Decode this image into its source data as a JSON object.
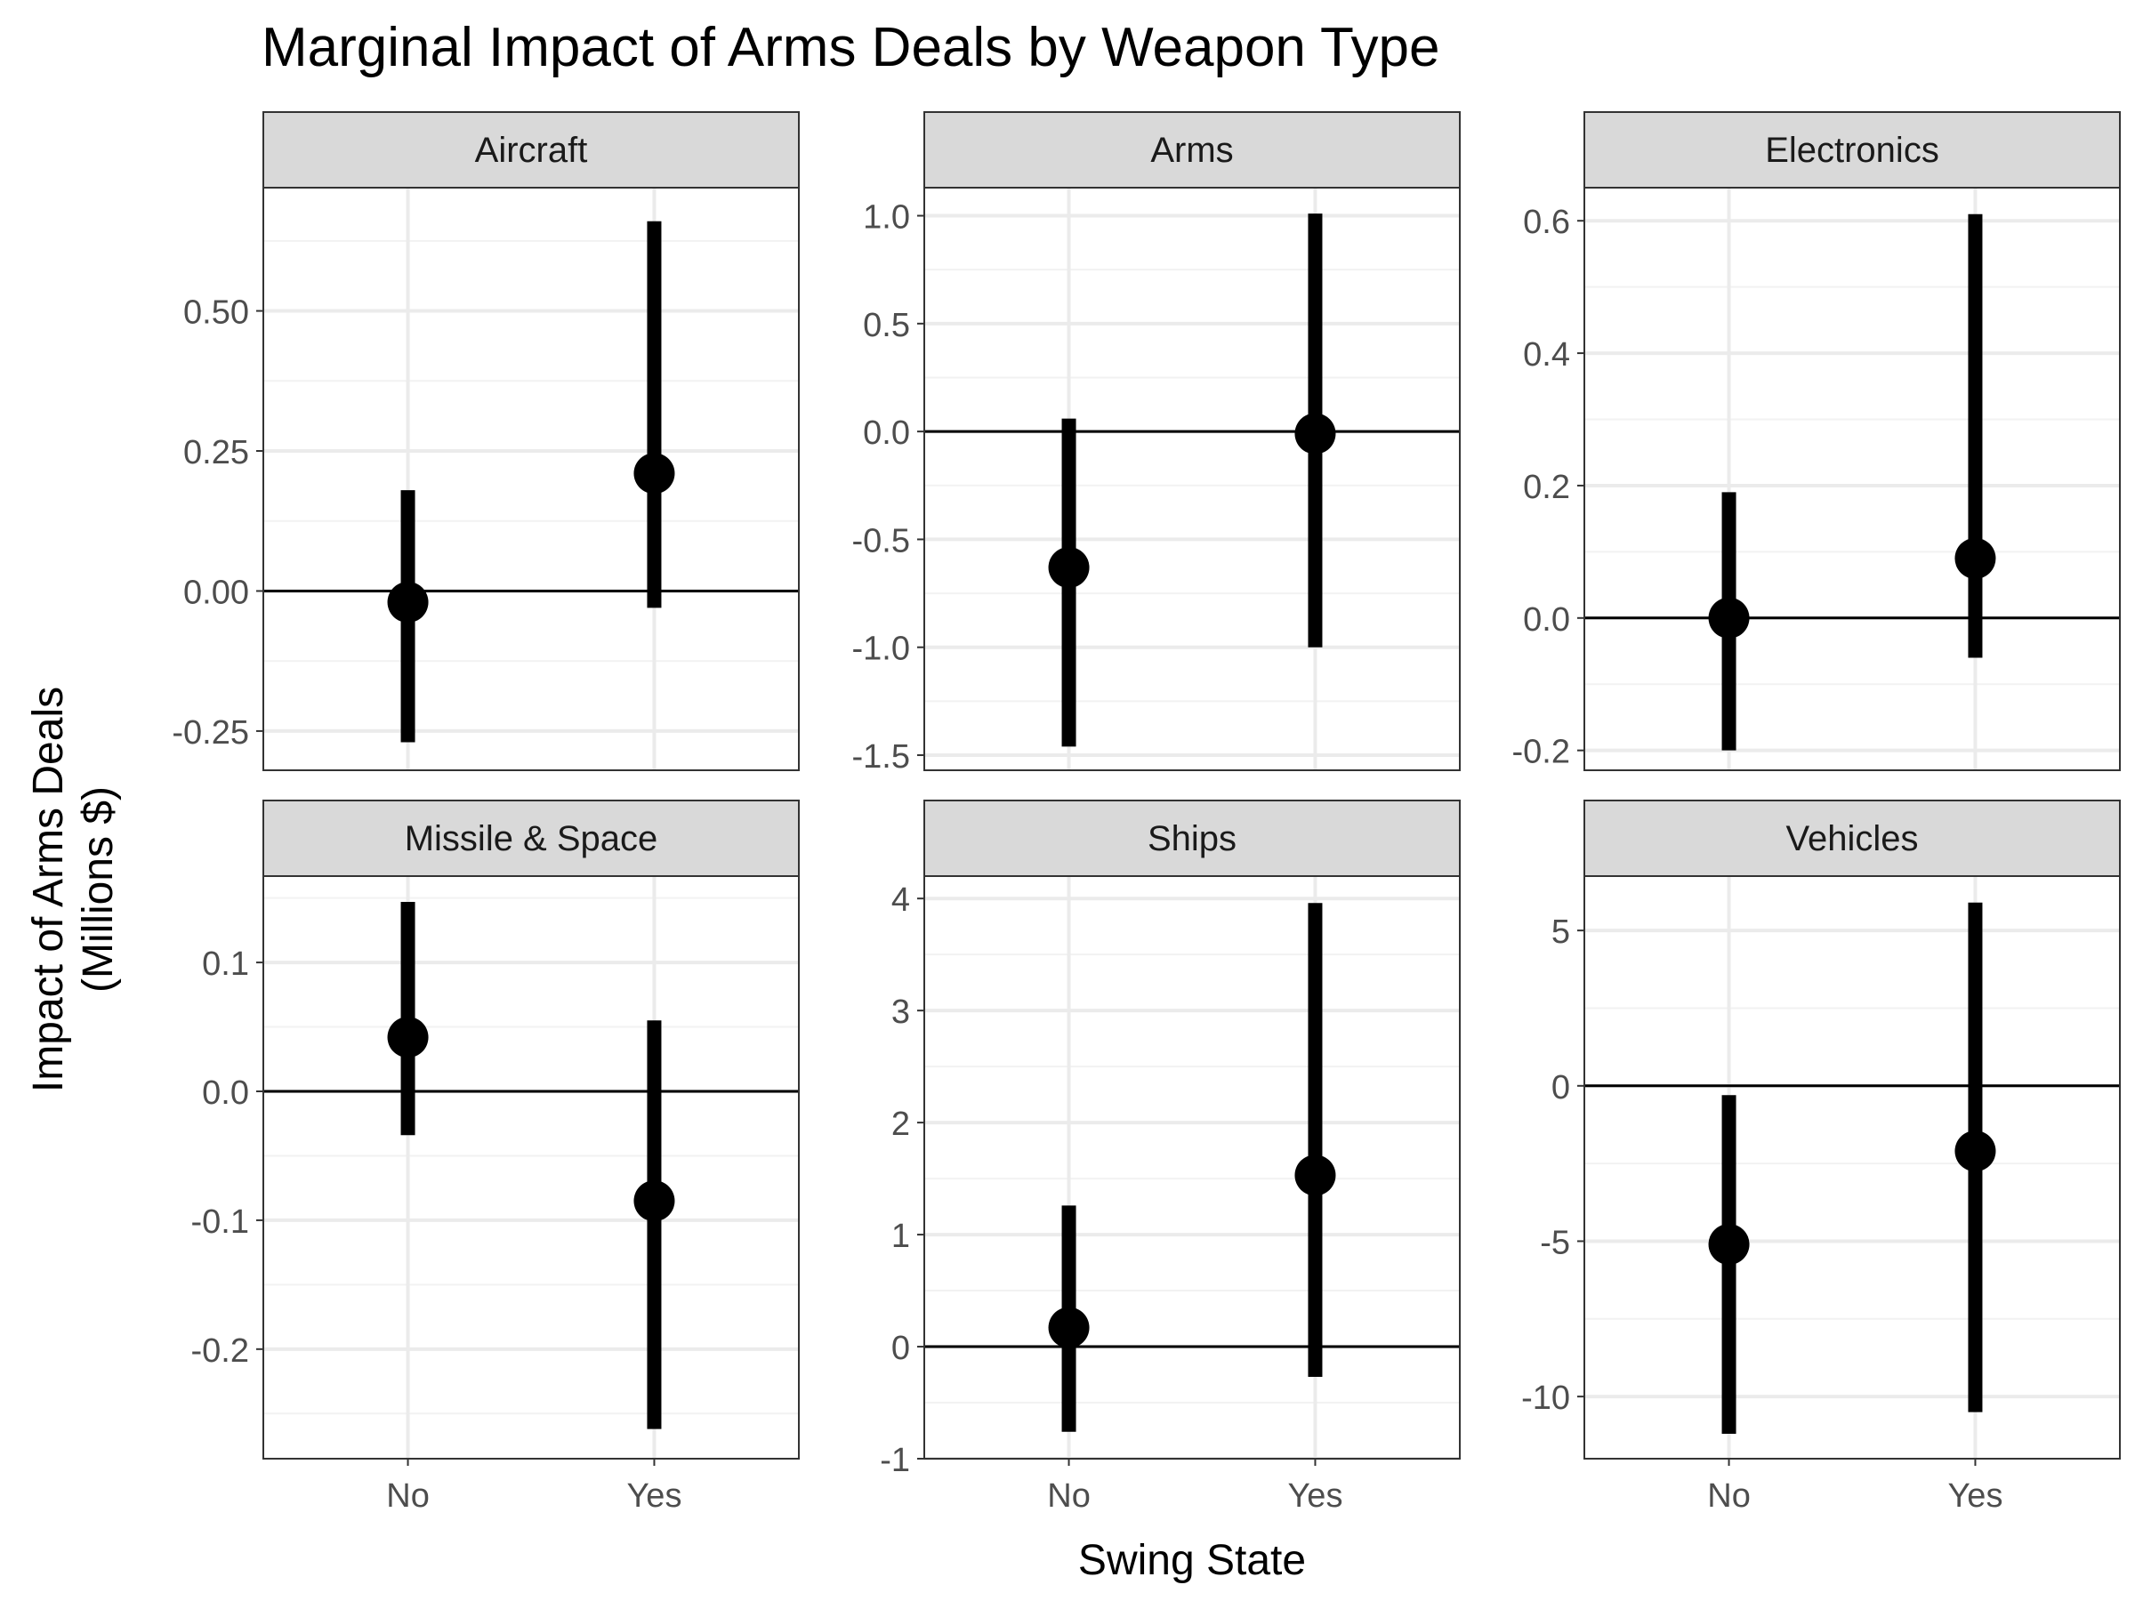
{
  "title": "Marginal Impact of Arms Deals by Weapon Type",
  "xlabel": "Swing State",
  "ylabel_lines": [
    "Impact of Arms Deals",
    "(Millions $)"
  ],
  "colors": {
    "mark": "#000000",
    "strip": "#d9d9d9",
    "panel_border": "#333333",
    "grid_major": "#ebebeb",
    "grid_minor": "#f2f2f2",
    "tick_text": "#4d4d4d",
    "text": "#000000"
  },
  "chart_data": [
    {
      "type": "pointrange",
      "facet": "Aircraft",
      "categories": [
        "No",
        "Yes"
      ],
      "estimates": [
        -0.02,
        0.21
      ],
      "lower": [
        -0.27,
        -0.03
      ],
      "upper": [
        0.18,
        0.66
      ],
      "ylim": [
        -0.32,
        0.72
      ],
      "yticks": [
        -0.25,
        0.0,
        0.25,
        0.5
      ],
      "ytick_labels": [
        "-0.25",
        "0.00",
        "0.25",
        "0.50"
      ],
      "reference_line": 0
    },
    {
      "type": "pointrange",
      "facet": "Arms",
      "categories": [
        "No",
        "Yes"
      ],
      "estimates": [
        -0.63,
        -0.01
      ],
      "lower": [
        -1.46,
        -1.0
      ],
      "upper": [
        0.06,
        1.01
      ],
      "ylim": [
        -1.57,
        1.13
      ],
      "yticks": [
        -1.5,
        -1.0,
        -0.5,
        0.0,
        0.5,
        1.0
      ],
      "ytick_labels": [
        "-1.5",
        "-1.0",
        "-0.5",
        "0.0",
        "0.5",
        "1.0"
      ],
      "reference_line": 0
    },
    {
      "type": "pointrange",
      "facet": "Electronics",
      "categories": [
        "No",
        "Yes"
      ],
      "estimates": [
        0.0,
        0.09
      ],
      "lower": [
        -0.2,
        -0.06
      ],
      "upper": [
        0.19,
        0.61
      ],
      "ylim": [
        -0.23,
        0.65
      ],
      "yticks": [
        -0.2,
        0.0,
        0.2,
        0.4,
        0.6
      ],
      "ytick_labels": [
        "-0.2",
        "0.0",
        "0.2",
        "0.4",
        "0.6"
      ],
      "reference_line": 0
    },
    {
      "type": "pointrange",
      "facet": "Missile & Space",
      "categories": [
        "No",
        "Yes"
      ],
      "estimates": [
        0.042,
        -0.085
      ],
      "lower": [
        -0.034,
        -0.262
      ],
      "upper": [
        0.147,
        0.055
      ],
      "ylim": [
        -0.285,
        0.167
      ],
      "yticks": [
        -0.2,
        -0.1,
        0.0,
        0.1
      ],
      "ytick_labels": [
        "-0.2",
        "-0.1",
        "0.0",
        "0.1"
      ],
      "reference_line": 0
    },
    {
      "type": "pointrange",
      "facet": "Ships",
      "categories": [
        "No",
        "Yes"
      ],
      "estimates": [
        0.17,
        1.53
      ],
      "lower": [
        -0.76,
        -0.27
      ],
      "upper": [
        1.26,
        3.96
      ],
      "ylim": [
        -1.0,
        4.2
      ],
      "yticks": [
        -1,
        0,
        1,
        2,
        3,
        4
      ],
      "ytick_labels": [
        "-1",
        "0",
        "1",
        "2",
        "3",
        "4"
      ],
      "reference_line": 0
    },
    {
      "type": "pointrange",
      "facet": "Vehicles",
      "categories": [
        "No",
        "Yes"
      ],
      "estimates": [
        -5.1,
        -2.1
      ],
      "lower": [
        -11.2,
        -10.5
      ],
      "upper": [
        -0.3,
        5.9
      ],
      "ylim": [
        -12.0,
        6.75
      ],
      "yticks": [
        -10,
        -5,
        0,
        5
      ],
      "ytick_labels": [
        "-10",
        "-5",
        "0",
        "5"
      ],
      "reference_line": 0
    }
  ]
}
